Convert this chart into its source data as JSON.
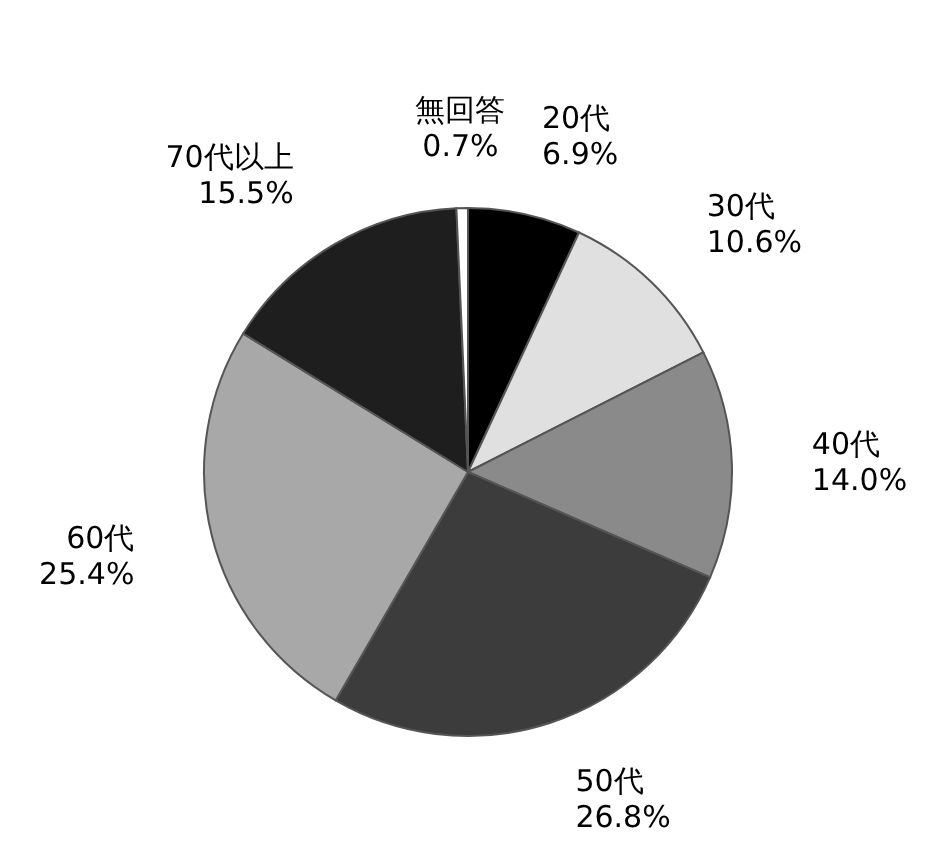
{
  "chart_data": {
    "type": "pie",
    "categories": [
      "20代",
      "30代",
      "40代",
      "50代",
      "60代",
      "70代以上",
      "無回答"
    ],
    "values": [
      6.9,
      10.6,
      14.0,
      26.8,
      25.4,
      15.5,
      0.7
    ],
    "colors": [
      "#000000",
      "#e0e0e0",
      "#8a8a8a",
      "#3c3c3c",
      "#a8a8a8",
      "#1e1e1e",
      "#ffffff"
    ],
    "value_labels": [
      "6.9%",
      "10.6%",
      "14.0%",
      "26.8%",
      "25.4%",
      "15.5%",
      "0.7%"
    ]
  }
}
